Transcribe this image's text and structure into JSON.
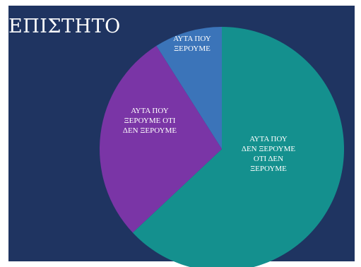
{
  "title": "ΕΠΙΣΤΗΤΟ",
  "chart_data": {
    "type": "pie",
    "title": "ΕΠΙΣΤΗΤΟ",
    "slices": [
      {
        "label": [
          "ΑΥΤΑ ΠΟΥ",
          "ΞΕΡΟΥΜΕ"
        ],
        "value": 9,
        "color": "#3b74b9"
      },
      {
        "label": [
          "ΑΥΤΑ ΠΟΥ",
          "ΔΕΝ ΞΕΡΟΥΜΕ",
          "ΟΤΙ ΔΕΝ",
          "ΞΕΡΟΥΜΕ"
        ],
        "value": 63,
        "color": "#14908e"
      },
      {
        "label": [
          "ΑΥΤΑ ΠΟΥ",
          "ΞΕΡΟΥΜΕ ΟΤΙ",
          "ΔΕΝ ΞΕΡΟΥΜΕ"
        ],
        "value": 28,
        "color": "#7a35a6"
      }
    ]
  }
}
